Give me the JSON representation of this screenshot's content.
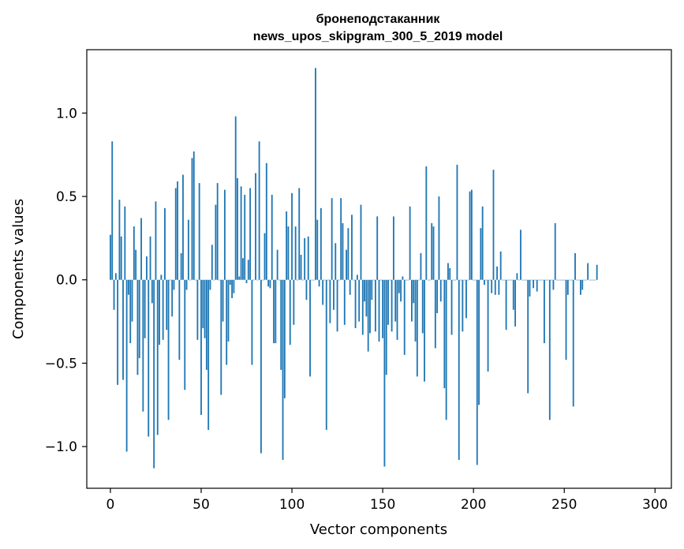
{
  "chart_data": {
    "type": "bar",
    "title_line1": "бронеподстаканник",
    "title_line2": "news_upos_skipgram_300_5_2019 model",
    "xlabel": "Vector components",
    "ylabel": "Components values",
    "xlim": [
      -13,
      309
    ],
    "ylim": [
      -1.25,
      1.38
    ],
    "xticks": [
      0,
      50,
      100,
      150,
      200,
      250,
      300
    ],
    "xtick_labels": [
      "0",
      "50",
      "100",
      "150",
      "200",
      "250",
      "300"
    ],
    "yticks": [
      -1.0,
      -0.5,
      0.0,
      0.5,
      1.0
    ],
    "ytick_labels": [
      "−1.0",
      "−0.5",
      "0.0",
      "0.5",
      "1.0"
    ],
    "bar_color": "#1f77b4",
    "values": [
      0.27,
      0.83,
      -0.18,
      0.04,
      -0.63,
      0.48,
      0.26,
      -0.6,
      0.44,
      -1.03,
      -0.09,
      -0.38,
      -0.25,
      0.32,
      0.18,
      -0.57,
      -0.47,
      0.37,
      -0.79,
      -0.35,
      0.14,
      -0.94,
      0.26,
      -0.14,
      -1.13,
      0.47,
      -0.93,
      -0.39,
      0.03,
      -0.36,
      0.43,
      -0.3,
      -0.84,
      0.0,
      -0.22,
      -0.06,
      0.55,
      0.59,
      -0.48,
      0.16,
      0.63,
      -0.66,
      -0.06,
      0.36,
      0.0,
      0.73,
      0.77,
      0.0,
      -0.36,
      0.58,
      -0.81,
      -0.29,
      -0.35,
      -0.54,
      -0.9,
      -0.06,
      0.21,
      0.0,
      0.45,
      0.58,
      0.0,
      -0.69,
      -0.25,
      0.54,
      -0.51,
      -0.37,
      -0.03,
      -0.11,
      -0.08,
      0.98,
      0.61,
      0.02,
      0.56,
      0.13,
      0.51,
      -0.02,
      0.12,
      0.55,
      -0.51,
      0.0,
      0.64,
      0.0,
      0.83,
      -1.04,
      0.0,
      0.28,
      0.7,
      -0.04,
      -0.05,
      0.51,
      -0.38,
      -0.38,
      0.18,
      0.0,
      -0.54,
      -1.08,
      -0.71,
      0.41,
      0.32,
      -0.39,
      0.52,
      -0.27,
      0.32,
      0.0,
      0.55,
      0.15,
      0.0,
      0.25,
      -0.12,
      0.26,
      -0.58,
      0.0,
      0.0,
      1.27,
      0.36,
      -0.04,
      0.43,
      -0.15,
      0.0,
      -0.9,
      0.0,
      -0.26,
      0.49,
      -0.18,
      0.22,
      -0.31,
      0.0,
      0.49,
      0.34,
      -0.27,
      0.18,
      0.31,
      -0.09,
      0.39,
      0.0,
      -0.29,
      0.03,
      -0.25,
      0.45,
      -0.33,
      -0.13,
      -0.22,
      -0.43,
      -0.32,
      -0.12,
      0.0,
      -0.31,
      0.38,
      -0.37,
      0.0,
      -0.35,
      -1.12,
      -0.57,
      -0.27,
      0.0,
      -0.31,
      0.38,
      -0.25,
      -0.36,
      -0.08,
      -0.13,
      0.02,
      -0.45,
      0.0,
      0.0,
      0.44,
      -0.25,
      -0.14,
      -0.37,
      -0.58,
      0.0,
      0.16,
      -0.32,
      -0.61,
      0.68,
      0.0,
      0.0,
      0.34,
      0.32,
      -0.41,
      -0.2,
      0.5,
      -0.13,
      0.0,
      -0.65,
      -0.84,
      0.1,
      0.07,
      -0.33,
      0.0,
      0.0,
      0.69,
      -1.08,
      0.0,
      -0.31,
      0.0,
      -0.23,
      0.0,
      0.53,
      0.54,
      0.0,
      0.0,
      -1.11,
      -0.75,
      0.31,
      0.44,
      -0.03,
      0.0,
      -0.55,
      0.0,
      -0.08,
      0.66,
      -0.09,
      0.08,
      -0.09,
      0.17,
      0.0,
      0.0,
      -0.3,
      0.0,
      0.0,
      0.0,
      -0.18,
      -0.28,
      0.04,
      0.0,
      0.3,
      0.0,
      0.0,
      0.0,
      -0.68,
      -0.1,
      0.0,
      -0.05,
      0.0,
      -0.07,
      0.0,
      0.0,
      0.0,
      -0.38,
      0.0,
      0.0,
      -0.84,
      0.0,
      -0.06,
      0.34,
      0.0,
      0.0,
      0.0,
      0.0,
      0.0,
      -0.48,
      -0.09,
      0.0,
      0.0,
      -0.76,
      0.16,
      0.0,
      0.0,
      -0.09,
      -0.06,
      0.0,
      0.0,
      0.1,
      0.0,
      0.0,
      0.0,
      0.0,
      0.09
    ]
  }
}
